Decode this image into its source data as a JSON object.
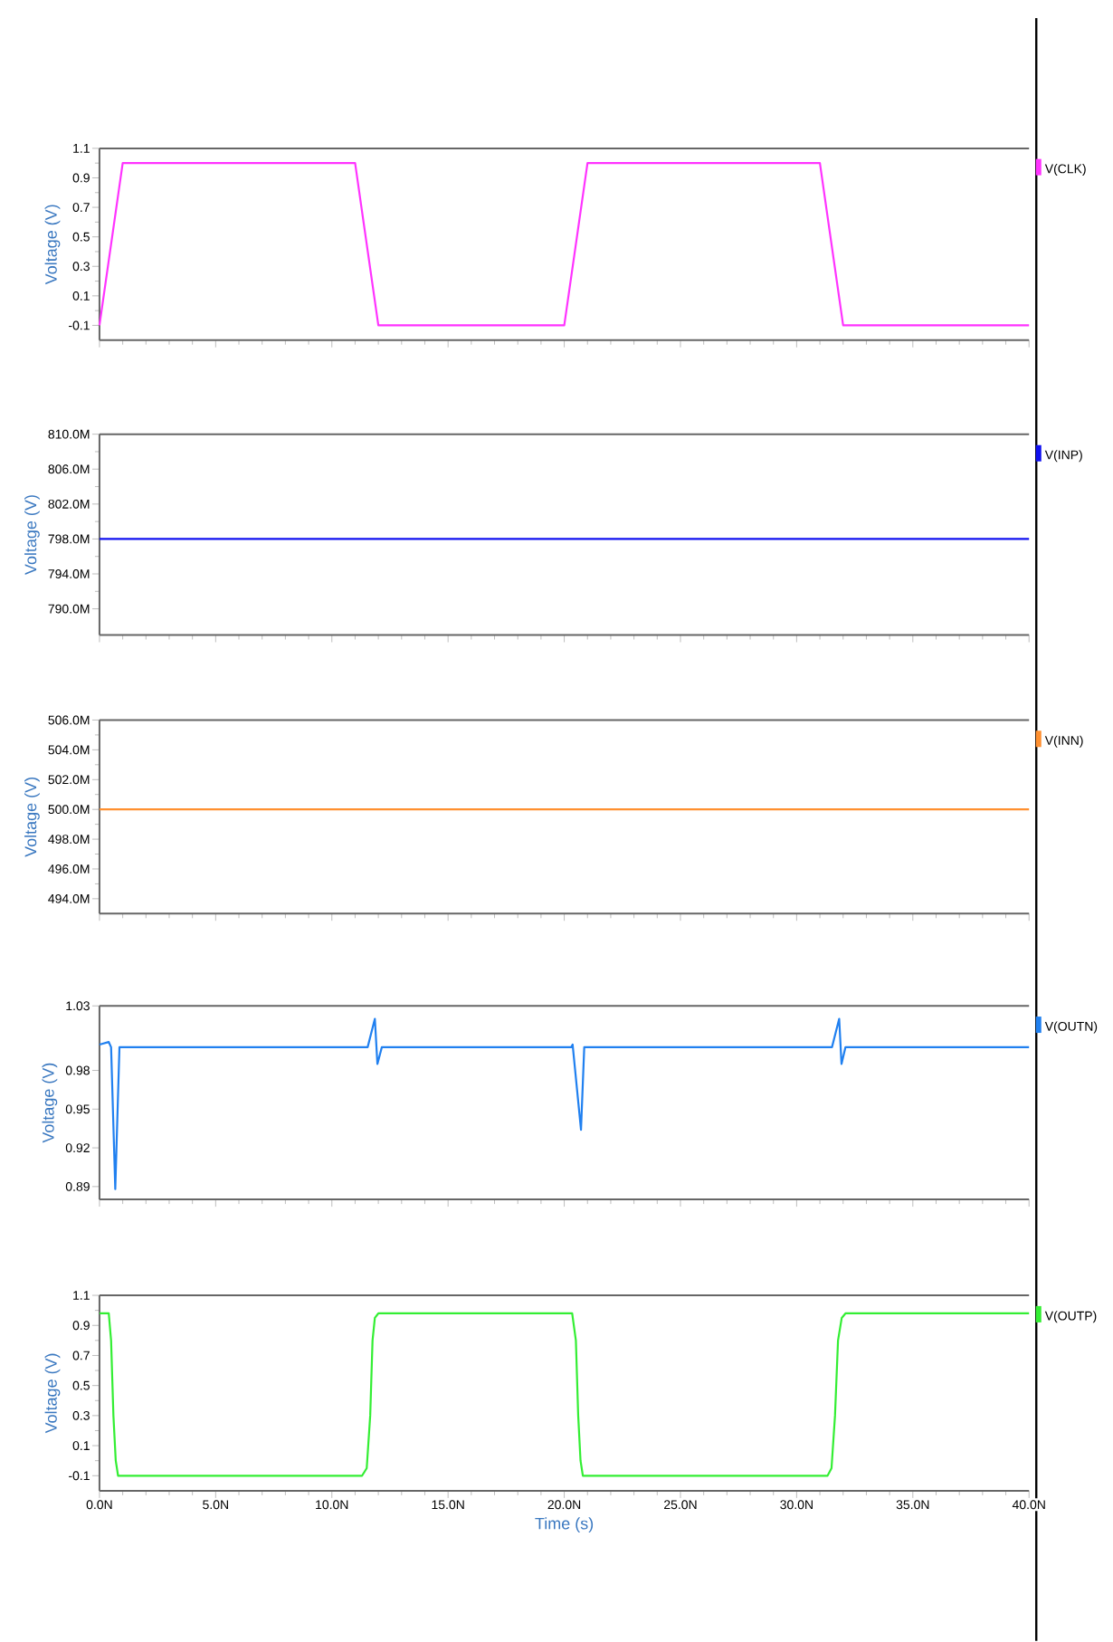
{
  "chart_data": [
    {
      "type": "line",
      "ylabel": "Voltage (V)",
      "xlim": [
        0,
        40
      ],
      "ylim": [
        -0.2,
        1.1
      ],
      "yticks": [
        -0.1,
        0.1,
        0.3,
        0.5,
        0.7,
        0.9,
        1.1
      ],
      "xticks": [
        0,
        5,
        10,
        15,
        20,
        25,
        30,
        35,
        40
      ],
      "tick_labels": "y",
      "legend": "right",
      "series": [
        {
          "name": "V(CLK)",
          "color": "#ff33ff",
          "x": [
            0,
            1,
            11,
            12,
            20,
            21,
            31,
            32,
            40
          ],
          "values": [
            -0.1,
            1.0,
            1.0,
            -0.1,
            -0.1,
            1.0,
            1.0,
            -0.1,
            -0.1
          ]
        }
      ]
    },
    {
      "type": "line",
      "ylabel": "Voltage (V)",
      "xlim": [
        0,
        40
      ],
      "ylim": [
        787,
        810
      ],
      "yticks": [
        {
          "value": 790,
          "label": "790.0M"
        },
        {
          "value": 794,
          "label": "794.0M"
        },
        {
          "value": 798,
          "label": "798.0M"
        },
        {
          "value": 802,
          "label": "802.0M"
        },
        {
          "value": 806,
          "label": "806.0M"
        },
        {
          "value": 810,
          "label": "810.0M"
        }
      ],
      "xticks": [
        0,
        5,
        10,
        15,
        20,
        25,
        30,
        35,
        40
      ],
      "tick_labels": "y",
      "legend": "right",
      "series": [
        {
          "name": "V(INP)",
          "color": "#1010f0",
          "x": [
            0,
            40
          ],
          "values": [
            798,
            798
          ]
        }
      ]
    },
    {
      "type": "line",
      "ylabel": "Voltage (V)",
      "xlim": [
        0,
        40
      ],
      "ylim": [
        493,
        506
      ],
      "yticks": [
        {
          "value": 494,
          "label": "494.0M"
        },
        {
          "value": 496,
          "label": "496.0M"
        },
        {
          "value": 498,
          "label": "498.0M"
        },
        {
          "value": 500,
          "label": "500.0M"
        },
        {
          "value": 502,
          "label": "502.0M"
        },
        {
          "value": 504,
          "label": "504.0M"
        },
        {
          "value": 506,
          "label": "506.0M"
        }
      ],
      "xticks": [
        0,
        5,
        10,
        15,
        20,
        25,
        30,
        35,
        40
      ],
      "tick_labels": "y",
      "legend": "right",
      "series": [
        {
          "name": "V(INN)",
          "color": "#ff9030",
          "x": [
            0,
            40
          ],
          "values": [
            500,
            500
          ]
        }
      ]
    },
    {
      "type": "line",
      "ylabel": "Voltage (V)",
      "xlim": [
        0,
        40
      ],
      "ylim": [
        0.88,
        1.03
      ],
      "yticks": [
        0.89,
        0.92,
        0.95,
        0.98,
        1.03
      ],
      "xticks": [
        0,
        5,
        10,
        15,
        20,
        25,
        30,
        35,
        40
      ],
      "tick_labels": "y",
      "legend": "right",
      "series": [
        {
          "name": "V(OUTN)",
          "color": "#2080f0",
          "x": [
            0,
            0.4,
            0.5,
            0.68,
            0.86,
            11.54,
            11.85,
            11.96,
            12.15,
            20.3,
            20.36,
            20.72,
            20.86,
            31.52,
            31.83,
            31.93,
            32.1,
            40
          ],
          "values": [
            1.0,
            1.002,
            0.998,
            0.888,
            0.998,
            0.998,
            1.02,
            0.985,
            0.998,
            0.998,
            1.0,
            0.934,
            0.998,
            0.998,
            1.02,
            0.985,
            0.998,
            0.998
          ]
        }
      ]
    },
    {
      "type": "line",
      "ylabel": "Voltage (V)",
      "xlabel": "Time (s)",
      "xlim": [
        0,
        40
      ],
      "ylim": [
        -0.2,
        1.1
      ],
      "yticks": [
        -0.1,
        0.1,
        0.3,
        0.5,
        0.7,
        0.9,
        1.1
      ],
      "xticks": [
        {
          "value": 0,
          "label": "0.0N"
        },
        {
          "value": 5,
          "label": "5.0N"
        },
        {
          "value": 10,
          "label": "10.0N"
        },
        {
          "value": 15,
          "label": "15.0N"
        },
        {
          "value": 20,
          "label": "20.0N"
        },
        {
          "value": 25,
          "label": "25.0N"
        },
        {
          "value": 30,
          "label": "30.0N"
        },
        {
          "value": 35,
          "label": "35.0N"
        },
        {
          "value": 40,
          "label": "40.0N"
        }
      ],
      "legend": "right",
      "series": [
        {
          "name": "V(OUTP)",
          "color": "#33ee33",
          "x": [
            0,
            0.4,
            0.5,
            0.6,
            0.7,
            0.8,
            11.3,
            11.5,
            11.65,
            11.75,
            11.85,
            12.0,
            20.34,
            20.5,
            20.6,
            20.7,
            20.8,
            31.33,
            31.5,
            31.65,
            31.78,
            31.94,
            32.1,
            40
          ],
          "values": [
            0.98,
            0.98,
            0.8,
            0.3,
            0.0,
            -0.1,
            -0.1,
            -0.05,
            0.3,
            0.8,
            0.95,
            0.98,
            0.98,
            0.8,
            0.3,
            0.0,
            -0.1,
            -0.1,
            -0.05,
            0.3,
            0.8,
            0.95,
            0.98,
            0.98
          ]
        }
      ]
    }
  ]
}
